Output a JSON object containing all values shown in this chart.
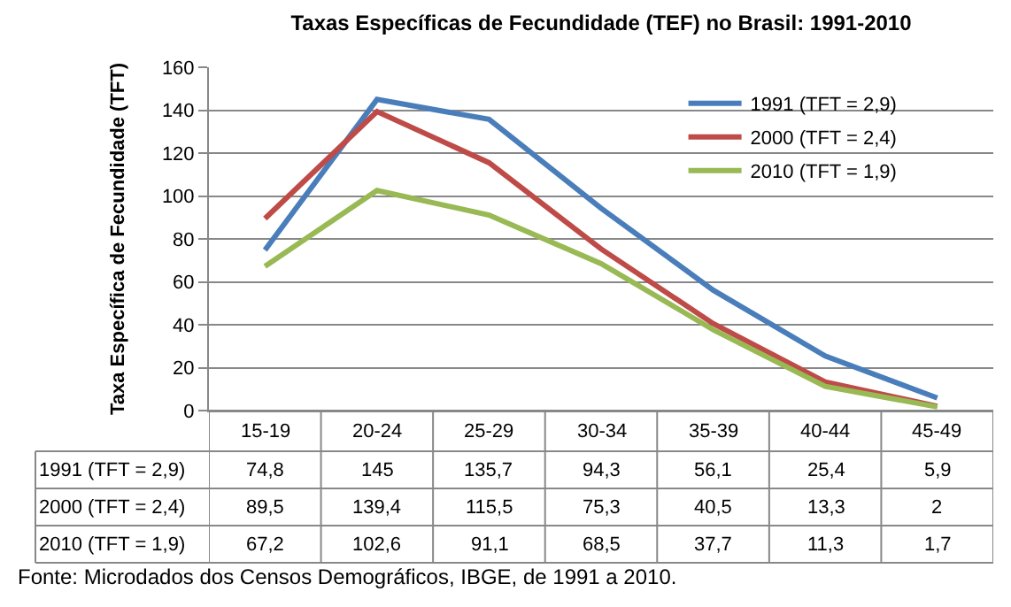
{
  "chart_data": {
    "type": "line",
    "title": "Taxas Específicas de Fecundidade (TEF) no Brasil: 1991-2010",
    "ylabel": "Taxa Específica de Fecundidade (TFT)",
    "categories": [
      "15-19",
      "20-24",
      "25-29",
      "30-34",
      "35-39",
      "40-44",
      "45-49"
    ],
    "series": [
      {
        "name": "1991 (TFT = 2,9)",
        "color": "#4a7ebb",
        "values": [
          74.8,
          145,
          135.7,
          94.3,
          56.1,
          25.4,
          5.9
        ],
        "value_labels": [
          "74,8",
          "145",
          "135,7",
          "94,3",
          "56,1",
          "25,4",
          "5,9"
        ]
      },
      {
        "name": "2000 (TFT = 2,4)",
        "color": "#be4b48",
        "values": [
          89.5,
          139.4,
          115.5,
          75.3,
          40.5,
          13.3,
          2
        ],
        "value_labels": [
          "89,5",
          "139,4",
          "115,5",
          "75,3",
          "40,5",
          "13,3",
          "2"
        ]
      },
      {
        "name": "2010 (TFT = 1,9)",
        "color": "#98b954",
        "values": [
          67.2,
          102.6,
          91.1,
          68.5,
          37.7,
          11.3,
          1.7
        ],
        "value_labels": [
          "67,2",
          "102,6",
          "91,1",
          "68,5",
          "37,7",
          "11,3",
          "1,7"
        ]
      }
    ],
    "ylim": [
      0,
      160
    ],
    "yticks": [
      0,
      20,
      40,
      60,
      80,
      100,
      120,
      140,
      160
    ],
    "grid": "y",
    "legend": "top right",
    "marker": "none",
    "line_style": "solid",
    "annotations": [
      "Fonte: Microdados dos Censos Demográficos, IBGE, de 1991 a 2010."
    ]
  }
}
